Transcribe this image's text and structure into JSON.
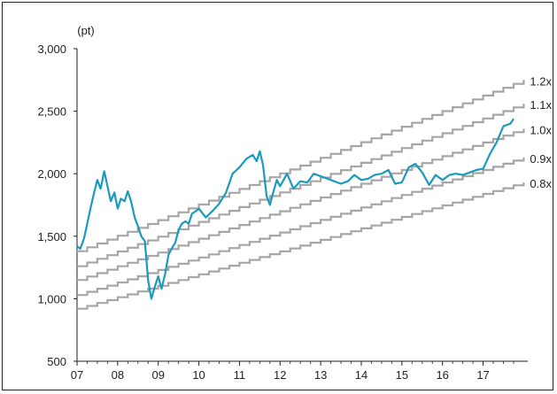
{
  "chart_data": {
    "type": "line",
    "title": "",
    "unit_label": "(pt)",
    "xlabel": "",
    "ylabel": "",
    "ylim": [
      500,
      3000
    ],
    "yticks": [
      500,
      1000,
      1500,
      2000,
      2500,
      3000
    ],
    "ytick_labels": [
      "500",
      "1,000",
      "1,500",
      "2,000",
      "2,500",
      "3,000"
    ],
    "xlim": [
      2007.0,
      2018.1
    ],
    "xticks": [
      2007,
      2008,
      2009,
      2010,
      2011,
      2012,
      2013,
      2014,
      2015,
      2016,
      2017
    ],
    "xtick_labels": [
      "07",
      "08",
      "09",
      "10",
      "11",
      "12",
      "13",
      "14",
      "15",
      "16",
      "17"
    ],
    "grid": false,
    "colors": {
      "index": "#1a9bbd",
      "bands": "#a6a6a6",
      "axis": "#222222"
    },
    "series": [
      {
        "name": "",
        "kind": "index",
        "x": [
          2007.0,
          2007.08,
          2007.17,
          2007.25,
          2007.33,
          2007.42,
          2007.5,
          2007.58,
          2007.67,
          2007.75,
          2007.83,
          2007.92,
          2008.0,
          2008.08,
          2008.17,
          2008.25,
          2008.33,
          2008.42,
          2008.5,
          2008.58,
          2008.67,
          2008.75,
          2008.83,
          2008.92,
          2009.0,
          2009.08,
          2009.17,
          2009.25,
          2009.33,
          2009.42,
          2009.5,
          2009.58,
          2009.67,
          2009.75,
          2009.83,
          2009.92,
          2010.0,
          2010.17,
          2010.33,
          2010.5,
          2010.67,
          2010.83,
          2011.0,
          2011.17,
          2011.33,
          2011.42,
          2011.5,
          2011.58,
          2011.67,
          2011.75,
          2011.83,
          2011.92,
          2012.0,
          2012.17,
          2012.33,
          2012.5,
          2012.67,
          2012.83,
          2013.0,
          2013.17,
          2013.33,
          2013.5,
          2013.67,
          2013.83,
          2014.0,
          2014.17,
          2014.33,
          2014.5,
          2014.67,
          2014.83,
          2015.0,
          2015.17,
          2015.33,
          2015.5,
          2015.67,
          2015.83,
          2016.0,
          2016.17,
          2016.33,
          2016.5,
          2016.67,
          2016.83,
          2017.0,
          2017.17,
          2017.33,
          2017.5,
          2017.67,
          2017.75
        ],
        "y": [
          1420,
          1400,
          1480,
          1600,
          1720,
          1850,
          1950,
          1880,
          2020,
          1900,
          1780,
          1850,
          1720,
          1800,
          1780,
          1860,
          1780,
          1650,
          1580,
          1500,
          1460,
          1150,
          1000,
          1100,
          1180,
          1080,
          1200,
          1350,
          1400,
          1450,
          1550,
          1600,
          1620,
          1600,
          1680,
          1700,
          1720,
          1650,
          1700,
          1760,
          1850,
          2000,
          2050,
          2120,
          2150,
          2100,
          2180,
          2070,
          1820,
          1750,
          1850,
          1950,
          1900,
          2000,
          1880,
          1940,
          1930,
          2000,
          1980,
          1960,
          1940,
          1920,
          1940,
          1990,
          1950,
          1960,
          1990,
          2000,
          2030,
          1920,
          1930,
          2050,
          2080,
          2010,
          1910,
          1990,
          1950,
          1990,
          2000,
          1990,
          2010,
          2030,
          2040,
          2160,
          2250,
          2380,
          2400,
          2440
        ]
      },
      {
        "name": "1.2x",
        "kind": "band",
        "x": [
          2007.0,
          2018.0
        ],
        "y": [
          1380,
          2750
        ]
      },
      {
        "name": "1.1x",
        "kind": "band",
        "x": [
          2007.0,
          2018.0
        ],
        "y": [
          1260,
          2560
        ]
      },
      {
        "name": "1.0x",
        "kind": "band",
        "x": [
          2007.0,
          2018.0
        ],
        "y": [
          1150,
          2360
        ]
      },
      {
        "name": "0.9x",
        "kind": "band",
        "x": [
          2007.0,
          2018.0
        ],
        "y": [
          1030,
          2130
        ]
      },
      {
        "name": "0.8x",
        "kind": "band",
        "x": [
          2007.0,
          2018.0
        ],
        "y": [
          920,
          1930
        ]
      }
    ]
  }
}
